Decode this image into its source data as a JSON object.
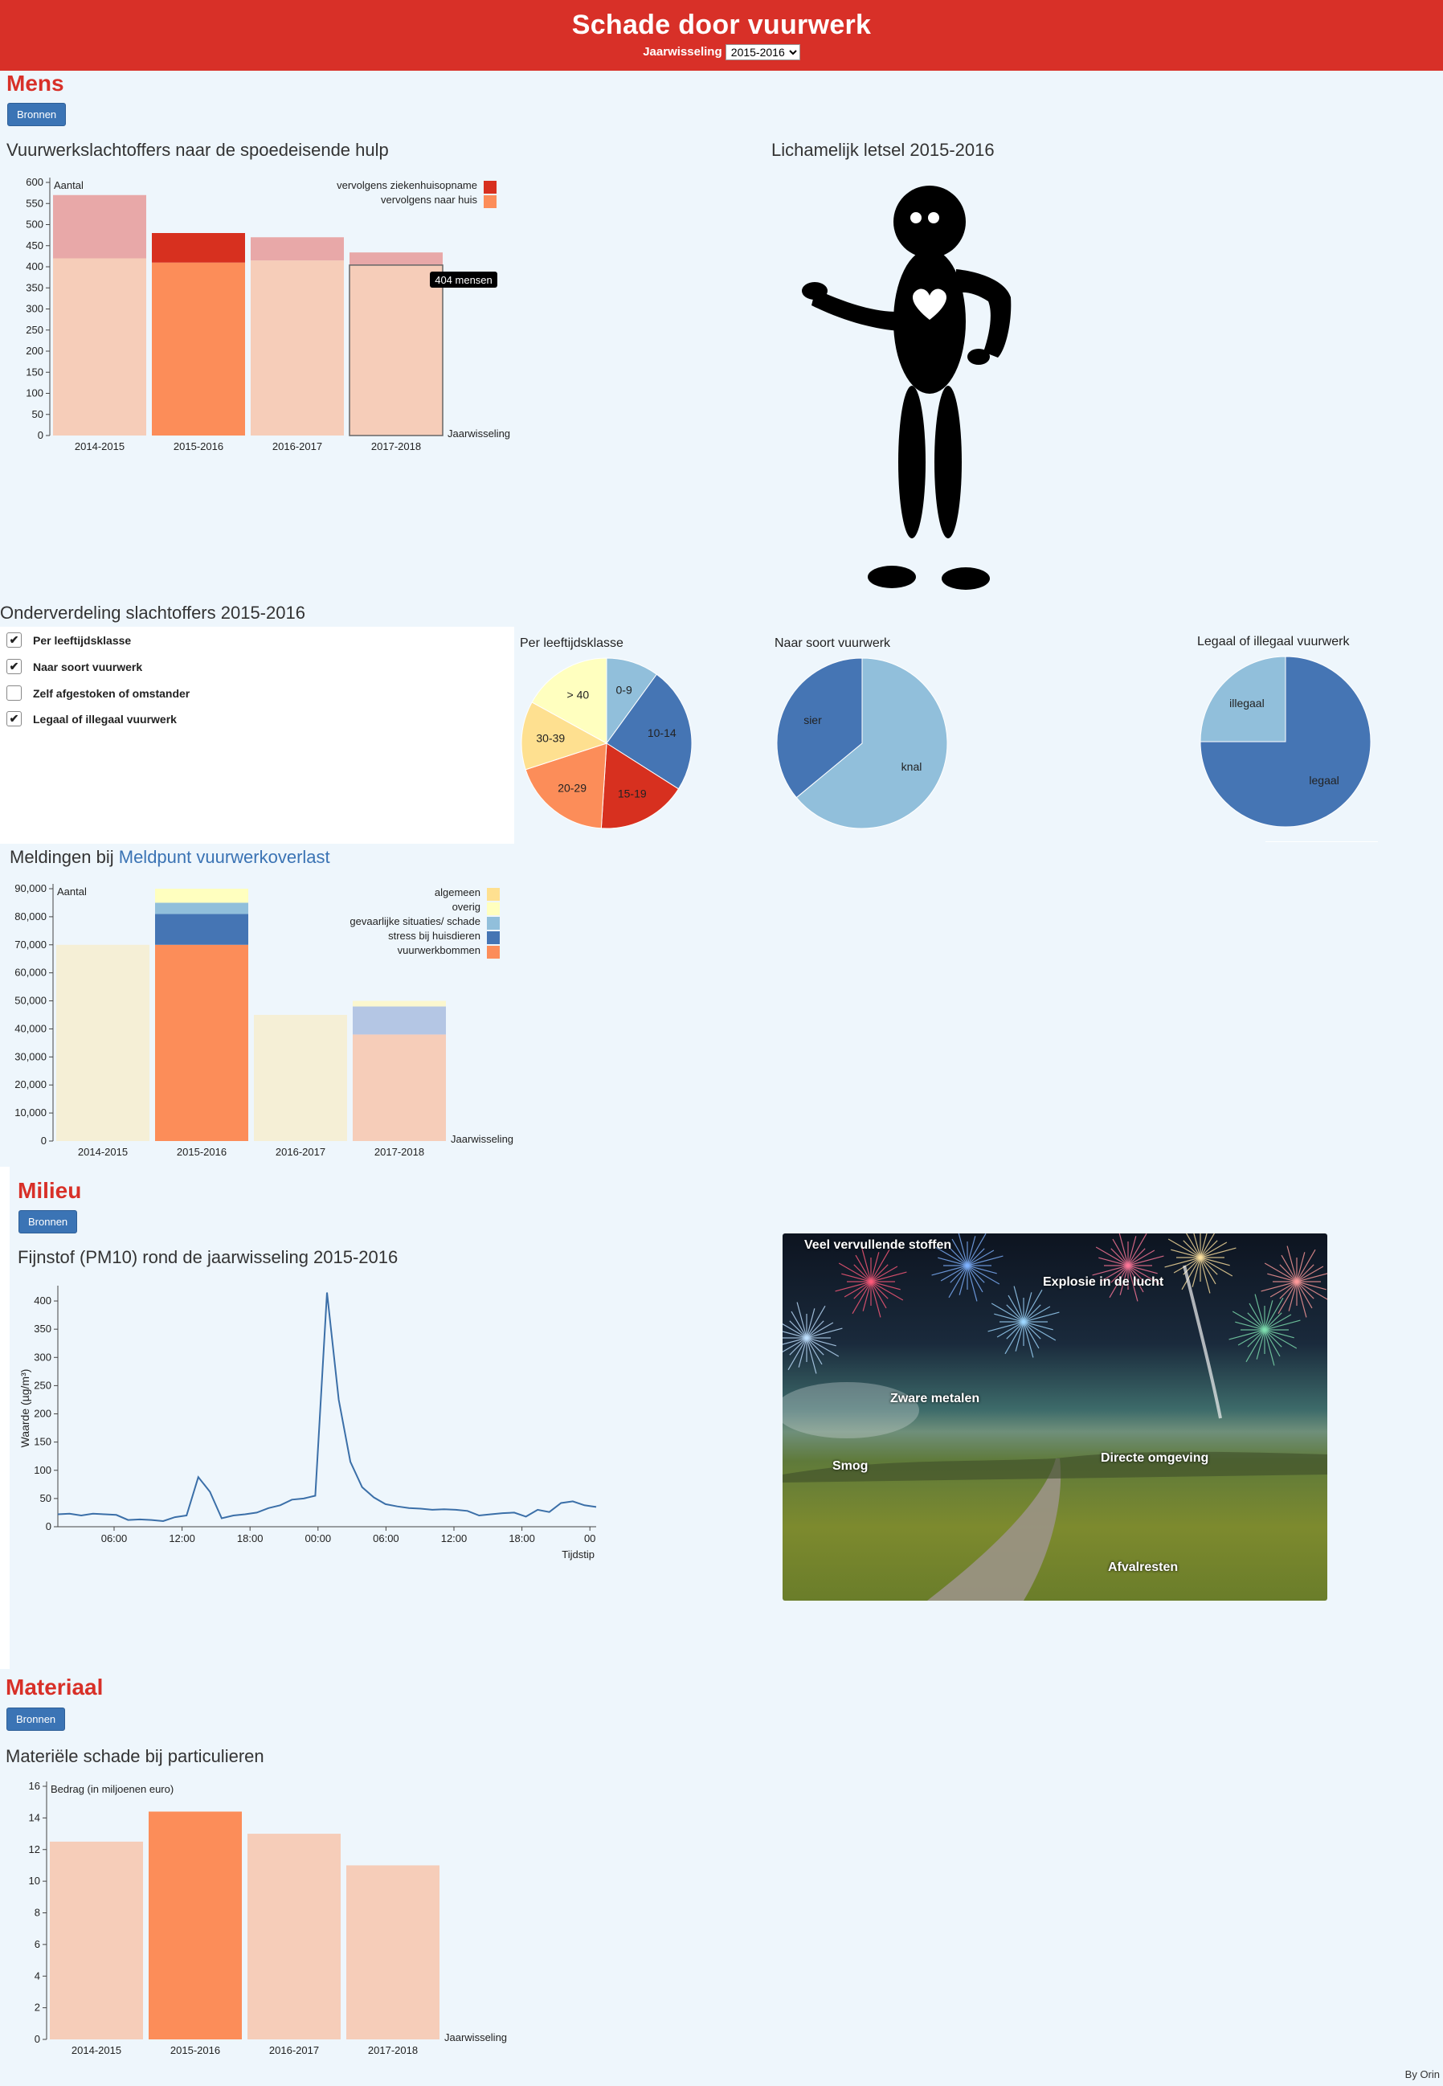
{
  "header": {
    "title": "Schade door vuurwerk",
    "year_label": "Jaarwisseling",
    "year_value": "2015-2016"
  },
  "mens": {
    "title": "Mens",
    "sources_button": "Bronnen",
    "er_chart": {
      "title": "Vuurwerkslachtoffers naar de spoedeisende hulp",
      "ylabel": "Aantal",
      "xlabel": "Jaarwisseling",
      "tooltip": "404 mensen",
      "legend": [
        "vervolgens ziekenhuisopname",
        "vervolgens naar huis"
      ]
    },
    "injury_title": "Lichamelijk letsel 2015-2016",
    "breakdown": {
      "title": "Onderverdeling slachtoffers 2015-2016",
      "options": [
        {
          "label": "Per leeftijdsklasse",
          "checked": true
        },
        {
          "label": "Naar soort vuurwerk",
          "checked": true
        },
        {
          "label": "Zelf afgestoken of omstander",
          "checked": false
        },
        {
          "label": "Legaal of illegaal vuurwerk",
          "checked": true
        }
      ],
      "pie_titles": [
        "Per leeftijdsklasse",
        "Naar soort vuurwerk",
        "Legaal of illegaal vuurwerk"
      ]
    },
    "meldingen": {
      "title_prefix": "Meldingen bij ",
      "title_link": "Meldpunt vuurwerkoverlast",
      "ylabel": "Aantal",
      "xlabel": "Jaarwisseling"
    }
  },
  "milieu": {
    "title": "Milieu",
    "sources_button": "Bronnen",
    "pm_chart": {
      "title": "Fijnstof (PM10) rond de jaarwisseling 2015-2016",
      "ylabel": "Waarde (µg/m³)",
      "xlabel": "Tijdstip"
    },
    "photo_labels": [
      "Veel vervullende stoffen",
      "Explosie in de lucht",
      "Zware metalen",
      "Smog",
      "Directe omgeving",
      "Afvalresten"
    ]
  },
  "materiaal": {
    "title": "Materiaal",
    "sources_button": "Bronnen",
    "damage_chart": {
      "title": "Materiële schade bij particulieren",
      "ylabel": "Bedrag (in miljoenen euro)",
      "xlabel": "Jaarwisseling"
    }
  },
  "footer": "By Orin",
  "colors": {
    "header_red": "#d83028",
    "dark_red": "#d7301f",
    "light_red": "#e8a8a8",
    "orange": "#fc8d59",
    "light_salmon": "#f6cdb9",
    "blue": "#4575b4",
    "light_blue": "#91bfdb",
    "yellow": "#fee090",
    "pale_yellow": "#ffffbf",
    "cream": "#f5efd6"
  },
  "chart_data": [
    {
      "type": "bar",
      "title": "Vuurwerkslachtoffers naar de spoedeisende hulp",
      "ylabel": "Aantal",
      "xlabel": "Jaarwisseling",
      "categories": [
        "2014-2015",
        "2015-2016",
        "2016-2017",
        "2017-2018"
      ],
      "series": [
        {
          "name": "vervolgens naar huis",
          "values": [
            420,
            410,
            415,
            404
          ]
        },
        {
          "name": "vervolgens ziekenhuisopname",
          "values": [
            150,
            70,
            55,
            30
          ]
        }
      ],
      "yticks": [
        0,
        50,
        100,
        150,
        200,
        250,
        300,
        350,
        400,
        450,
        500,
        550,
        600
      ],
      "ylim": [
        0,
        600
      ],
      "highlight": "2015-2016",
      "legend_position": "top-right"
    },
    {
      "type": "pie",
      "title": "Per leeftijdsklasse",
      "labels": [
        "0-9",
        "10-14",
        "15-19",
        "20-29",
        "30-39",
        "> 40"
      ],
      "values": [
        10,
        24,
        17,
        19,
        13,
        17
      ]
    },
    {
      "type": "pie",
      "title": "Naar soort vuurwerk",
      "labels": [
        "knal",
        "sier"
      ],
      "values": [
        64,
        36
      ]
    },
    {
      "type": "pie",
      "title": "Legaal of illegaal vuurwerk",
      "labels": [
        "legaal",
        "illegaal"
      ],
      "values": [
        75,
        25
      ]
    },
    {
      "type": "bar",
      "title": "Meldingen bij Meldpunt vuurwerkoverlast",
      "ylabel": "Aantal",
      "xlabel": "Jaarwisseling",
      "categories": [
        "2014-2015",
        "2015-2016",
        "2016-2017",
        "2017-2018"
      ],
      "series": [
        {
          "name": "vuurwerkbommen",
          "values": [
            0,
            70000,
            0,
            38000
          ]
        },
        {
          "name": "stress bij huisdieren",
          "values": [
            0,
            11000,
            0,
            0
          ]
        },
        {
          "name": "gevaarlijke situaties/ schade",
          "values": [
            0,
            4000,
            0,
            10000
          ]
        },
        {
          "name": "overig",
          "values": [
            0,
            5000,
            0,
            2000
          ]
        },
        {
          "name": "algemeen",
          "values": [
            70000,
            0,
            45000,
            0
          ]
        }
      ],
      "yticks": [
        0,
        10000,
        20000,
        30000,
        40000,
        50000,
        60000,
        70000,
        80000,
        90000
      ],
      "ylim": [
        0,
        90000
      ],
      "highlight": "2015-2016",
      "legend_position": "top-right"
    },
    {
      "type": "line",
      "title": "Fijnstof (PM10) rond de jaarwisseling 2015-2016",
      "ylabel": "Waarde (µg/m³)",
      "xlabel": "Tijdstip",
      "xticks": [
        "06:00",
        "12:00",
        "18:00",
        "00:00",
        "06:00",
        "12:00",
        "18:00",
        "00"
      ],
      "yticks": [
        0,
        50,
        100,
        150,
        200,
        250,
        300,
        350,
        400
      ],
      "ylim": [
        0,
        420
      ],
      "values": [
        22,
        23,
        20,
        23,
        22,
        21,
        12,
        13,
        12,
        10,
        17,
        20,
        88,
        62,
        15,
        20,
        22,
        25,
        33,
        38,
        48,
        50,
        55,
        415,
        225,
        115,
        70,
        52,
        40,
        36,
        33,
        32,
        30,
        31,
        30,
        28,
        20,
        22,
        24,
        25,
        18,
        30,
        26,
        42,
        45,
        38,
        35
      ]
    },
    {
      "type": "bar",
      "title": "Materiële schade bij particulieren",
      "ylabel": "Bedrag (in miljoenen euro)",
      "xlabel": "Jaarwisseling",
      "categories": [
        "2014-2015",
        "2015-2016",
        "2016-2017",
        "2017-2018"
      ],
      "values": [
        12.5,
        14.4,
        13,
        11
      ],
      "yticks": [
        0,
        2,
        4,
        6,
        8,
        10,
        12,
        14,
        16
      ],
      "ylim": [
        0,
        16
      ],
      "highlight": "2015-2016"
    }
  ]
}
